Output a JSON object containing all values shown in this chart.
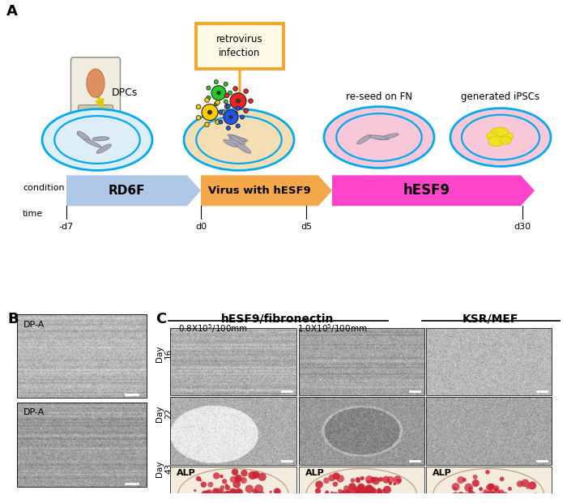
{
  "bg_color": "#ffffff",
  "panel_A_label": "A",
  "panel_B_label": "B",
  "panel_C_label": "C",
  "arrow_colors": {
    "RD6F": "#b0c8e8",
    "Virus": "#f5a84a",
    "hESF9": "#ff44cc"
  },
  "arrow_labels": [
    "RD6F",
    "Virus with hESF9",
    "hESF9"
  ],
  "time_labels": [
    "-d7",
    "d0",
    "d5",
    "d30"
  ],
  "condition_label": "condition",
  "time_label": "time",
  "retrovirus_box_color": "#f5a623",
  "retrovirus_box_fill": "#fffbe8",
  "retrovirus_text": "retrovirus\ninfection",
  "dpcs_label": "DPCs",
  "reseed_label": "re-seed on FN",
  "generated_label": "generated iPSCs",
  "dish_outline_color": "#00aaee",
  "dish_fill_1": "#ddeef8",
  "dish_fill_2": "#f5deb3",
  "dish_fill_3": "#f8c8d8",
  "dish_fill_4": "#f8c8d8",
  "col_header_1": "hESF9/fibronectin",
  "col_header_2": "KSR/MEF",
  "sub_header_1": "0.8X10$^5$/100mm",
  "sub_header_2": "1.0X10$^5$/100mm",
  "row_labels": [
    "Day\n16",
    "Day\n22",
    "Day\n43"
  ],
  "alp_labels": [
    "ALP",
    "ALP",
    "ALP"
  ],
  "dp_labels": [
    "DP-A",
    "DP-A"
  ],
  "gear_colors": [
    "#22cc22",
    "#ffcc00",
    "#ee2222",
    "#2255ee"
  ],
  "yellow_arrow_color": "#ddcc00",
  "orange_arrow_color": "#f5a623"
}
